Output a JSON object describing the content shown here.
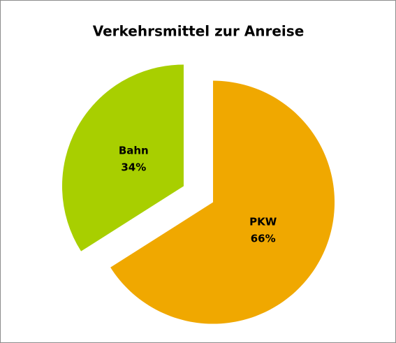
{
  "chart_data": {
    "type": "pie",
    "title": "Verkehrsmittel zur Anreise",
    "categories": [
      "PKW",
      "Bahn"
    ],
    "values": [
      66,
      34
    ],
    "value_labels": [
      "66%",
      "34%"
    ],
    "colors": [
      "#f0a800",
      "#a8cf00"
    ],
    "exploded": true
  }
}
